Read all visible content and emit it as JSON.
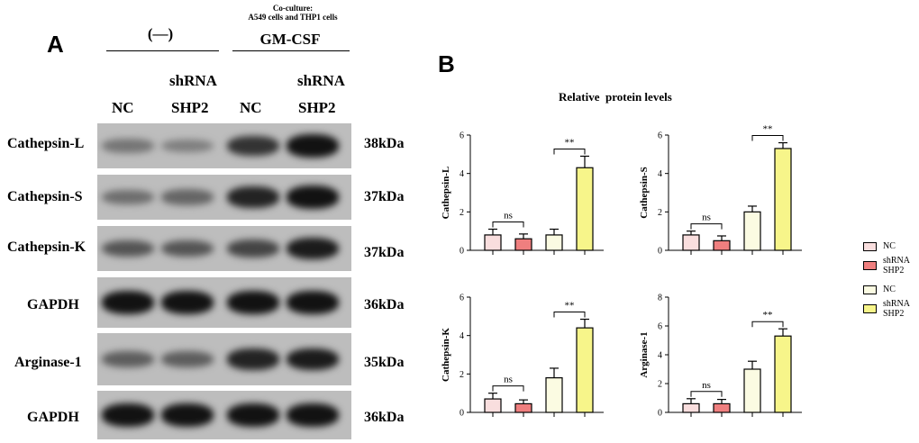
{
  "panel_a": {
    "letter": "A",
    "coculture_line1": "Co-culture:",
    "coculture_line2": "A549 cells and THP1 cells",
    "group_minus": "(—)",
    "group_gmcsf": "GM-CSF",
    "lanes": [
      {
        "top": "",
        "bottom": "NC"
      },
      {
        "top": "shRNA",
        "bottom": "SHP2"
      },
      {
        "top": "",
        "bottom": "NC"
      },
      {
        "top": "shRNA",
        "bottom": "SHP2"
      }
    ],
    "blots": [
      {
        "label": "Cathepsin-L",
        "kda": "38kDa",
        "intensity": [
          0.35,
          0.3,
          0.75,
          0.95
        ]
      },
      {
        "label": "Cathepsin-S",
        "kda": "37kDa",
        "intensity": [
          0.4,
          0.45,
          0.85,
          0.95
        ]
      },
      {
        "label": "Cathepsin-K",
        "kda": "37kDa",
        "intensity": [
          0.55,
          0.55,
          0.65,
          0.9
        ]
      },
      {
        "label": "GAPDH",
        "kda": "36kDa",
        "intensity": [
          0.95,
          0.95,
          0.95,
          0.95
        ]
      },
      {
        "label": "Arginase-1",
        "kda": "35kDa",
        "intensity": [
          0.5,
          0.5,
          0.85,
          0.9
        ]
      },
      {
        "label": "GAPDH",
        "kda": "36kDa",
        "intensity": [
          0.95,
          0.95,
          0.95,
          0.95
        ]
      }
    ]
  },
  "panel_b": {
    "letter": "B",
    "title": "Relative  protein levels"
  },
  "legend": {
    "items": [
      {
        "label": "NC",
        "color": "#f9dede"
      },
      {
        "label": "shRNA SHP2",
        "color": "#ef7f7f"
      },
      {
        "label": "NC",
        "color": "#fbfbe2"
      },
      {
        "label": "shRNA SHP2",
        "color": "#f7f58a"
      }
    ]
  },
  "chart_data": [
    {
      "type": "bar",
      "title": "",
      "ylabel": "Cathepsin-L",
      "categories": [
        "NC",
        "shRNA SHP2",
        "NC",
        "shRNA SHP2"
      ],
      "values": [
        0.8,
        0.6,
        0.8,
        4.3
      ],
      "errors": [
        0.3,
        0.25,
        0.3,
        0.6
      ],
      "colors": [
        "#f9dede",
        "#ef7f7f",
        "#fbfbe2",
        "#f7f58a"
      ],
      "ylim": [
        0,
        6
      ],
      "yticks": [
        "0",
        "2",
        "4",
        "6"
      ],
      "annotations": [
        {
          "label": "ns",
          "bars": [
            0,
            1
          ]
        },
        {
          "label": "**",
          "bars": [
            2,
            3
          ]
        }
      ]
    },
    {
      "type": "bar",
      "title": "",
      "ylabel": "Cathepsin-S",
      "categories": [
        "NC",
        "shRNA SHP2",
        "NC",
        "shRNA SHP2"
      ],
      "values": [
        0.8,
        0.5,
        2.0,
        5.3
      ],
      "errors": [
        0.2,
        0.25,
        0.3,
        0.3
      ],
      "colors": [
        "#f9dede",
        "#ef7f7f",
        "#fbfbe2",
        "#f7f58a"
      ],
      "ylim": [
        0,
        6
      ],
      "yticks": [
        "0",
        "2",
        "4",
        "6"
      ],
      "annotations": [
        {
          "label": "ns",
          "bars": [
            0,
            1
          ]
        },
        {
          "label": "**",
          "bars": [
            2,
            3
          ]
        }
      ]
    },
    {
      "type": "bar",
      "title": "",
      "ylabel": "Cathepsin-K",
      "categories": [
        "NC",
        "shRNA SHP2",
        "NC",
        "shRNA SHP2"
      ],
      "values": [
        0.7,
        0.45,
        1.8,
        4.4
      ],
      "errors": [
        0.3,
        0.2,
        0.5,
        0.45
      ],
      "colors": [
        "#f9dede",
        "#ef7f7f",
        "#fbfbe2",
        "#f7f58a"
      ],
      "ylim": [
        0,
        6
      ],
      "yticks": [
        "0",
        "2",
        "4",
        "6"
      ],
      "annotations": [
        {
          "label": "ns",
          "bars": [
            0,
            1
          ]
        },
        {
          "label": "**",
          "bars": [
            2,
            3
          ]
        }
      ]
    },
    {
      "type": "bar",
      "title": "",
      "ylabel": "Arginase-1",
      "categories": [
        "NC",
        "shRNA SHP2",
        "NC",
        "shRNA SHP2"
      ],
      "values": [
        0.6,
        0.6,
        3.0,
        5.3
      ],
      "errors": [
        0.35,
        0.3,
        0.55,
        0.5
      ],
      "colors": [
        "#f9dede",
        "#ef7f7f",
        "#fbfbe2",
        "#f7f58a"
      ],
      "ylim": [
        0,
        8
      ],
      "yticks": [
        "0",
        "2",
        "4",
        "6",
        "8"
      ],
      "annotations": [
        {
          "label": "ns",
          "bars": [
            0,
            1
          ]
        },
        {
          "label": "**",
          "bars": [
            2,
            3
          ]
        }
      ]
    }
  ]
}
